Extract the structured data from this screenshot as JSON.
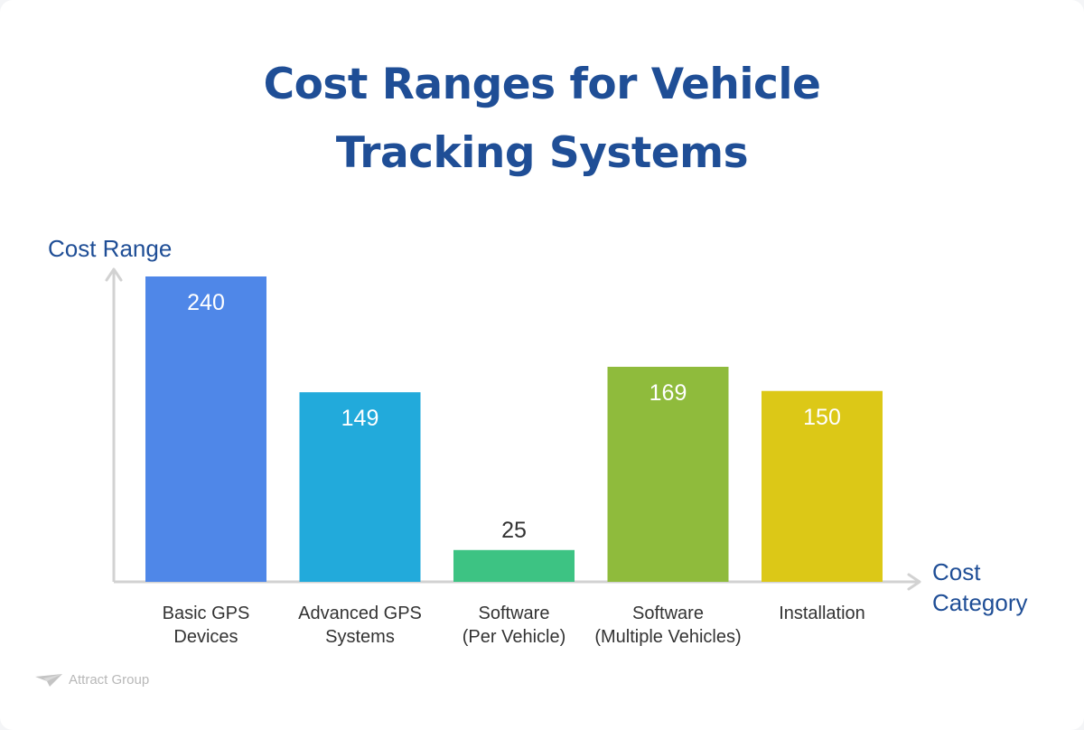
{
  "page": {
    "title_lines": [
      "Cost Ranges for Vehicle",
      "Tracking Systems"
    ],
    "watermark": "Attract Group"
  },
  "chart_data": {
    "type": "bar",
    "title": "Cost Ranges for Vehicle Tracking Systems",
    "ylabel": "Cost Range",
    "xlabel_lines": [
      "Cost",
      "Category"
    ],
    "ylim": [
      0,
      250
    ],
    "grid": false,
    "categories": [
      {
        "lines": [
          "Basic GPS",
          "Devices"
        ],
        "value": 240,
        "color": "#4f87e8"
      },
      {
        "lines": [
          "Advanced GPS",
          "Systems"
        ],
        "value": 149,
        "color": "#22aadb"
      },
      {
        "lines": [
          "Software",
          "(Per Vehicle)"
        ],
        "value": 25,
        "color": "#3dc383"
      },
      {
        "lines": [
          "Software",
          "(Multiple Vehicles)"
        ],
        "value": 169,
        "color": "#8fbb3c"
      },
      {
        "lines": [
          "Installation"
        ],
        "value": 150,
        "color": "#dcc817"
      }
    ],
    "axis_color": "#d2d2d2"
  }
}
